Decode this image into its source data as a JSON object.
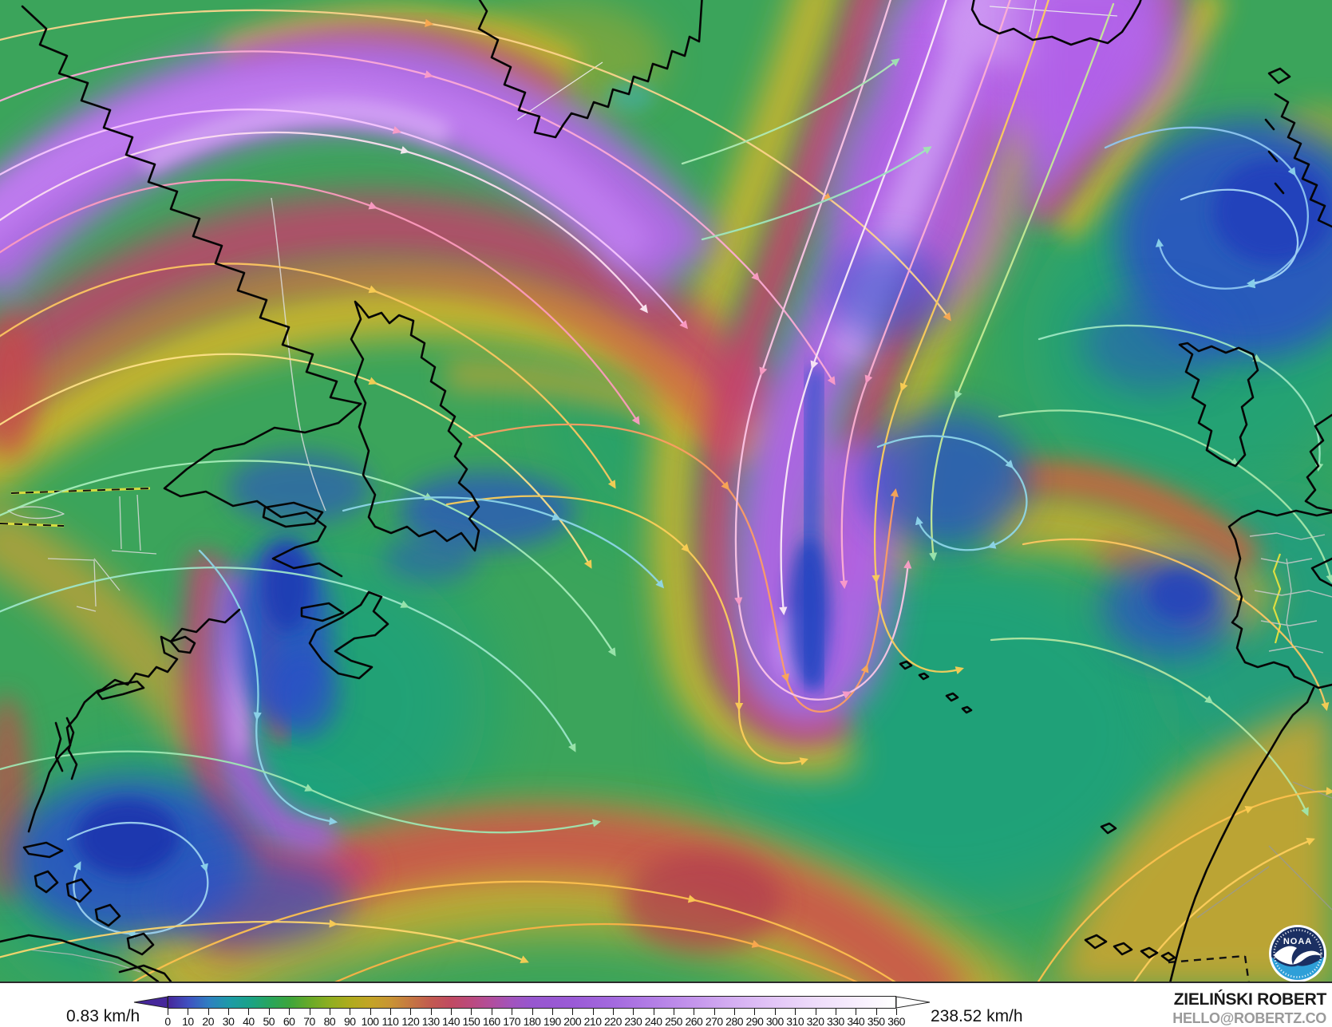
{
  "footer": {
    "min_label": "0.83 km/h",
    "max_label": "238.52 km/h",
    "unit": "km/h",
    "scale_ticks": [
      "0",
      "10",
      "20",
      "30",
      "40",
      "50",
      "60",
      "70",
      "80",
      "90",
      "100",
      "110",
      "120",
      "130",
      "140",
      "150",
      "160",
      "170",
      "180",
      "190",
      "200",
      "210",
      "220",
      "230",
      "240",
      "250",
      "260",
      "270",
      "280",
      "290",
      "300",
      "310",
      "320",
      "330",
      "340",
      "350",
      "360"
    ],
    "colorbar_stops": [
      {
        "v": 0,
        "c": "#46279b"
      },
      {
        "v": 10,
        "c": "#3f51c1"
      },
      {
        "v": 20,
        "c": "#2f7fc1"
      },
      {
        "v": 30,
        "c": "#1d9aa8"
      },
      {
        "v": 40,
        "c": "#1aa289"
      },
      {
        "v": 50,
        "c": "#28a55e"
      },
      {
        "v": 60,
        "c": "#3da53c"
      },
      {
        "v": 70,
        "c": "#68aa28"
      },
      {
        "v": 80,
        "c": "#8fae20"
      },
      {
        "v": 90,
        "c": "#afab1d"
      },
      {
        "v": 100,
        "c": "#c3a426"
      },
      {
        "v": 110,
        "c": "#c89434"
      },
      {
        "v": 120,
        "c": "#c57742"
      },
      {
        "v": 130,
        "c": "#c25a50"
      },
      {
        "v": 140,
        "c": "#c04a62"
      },
      {
        "v": 150,
        "c": "#bb4a7e"
      },
      {
        "v": 160,
        "c": "#b14e9d"
      },
      {
        "v": 170,
        "c": "#a254bd"
      },
      {
        "v": 180,
        "c": "#9757cf"
      },
      {
        "v": 200,
        "c": "#9a5ad6"
      },
      {
        "v": 220,
        "c": "#a369de"
      },
      {
        "v": 240,
        "c": "#b37ee6"
      },
      {
        "v": 260,
        "c": "#c495ec"
      },
      {
        "v": 280,
        "c": "#d5aff2"
      },
      {
        "v": 300,
        "c": "#e3c6f7"
      },
      {
        "v": 320,
        "c": "#eedcfa"
      },
      {
        "v": 340,
        "c": "#f7edfd"
      },
      {
        "v": 360,
        "c": "#ffffff"
      }
    ],
    "credit_name": "ZIELIŃSKI ROBERT",
    "credit_email": "HELLO@ROBERTZ.CO"
  },
  "noaa_logo": {
    "label": "NOAA"
  },
  "palette": {
    "background_green": "#3ba45b",
    "jet_core_purple": "#b263e8",
    "jet_fringe_crimson": "#c2436b",
    "jet_fringe_yellow": "#d7b62a",
    "calm_blue": "#2c50c8",
    "teal_patch": "#0fa08c"
  }
}
